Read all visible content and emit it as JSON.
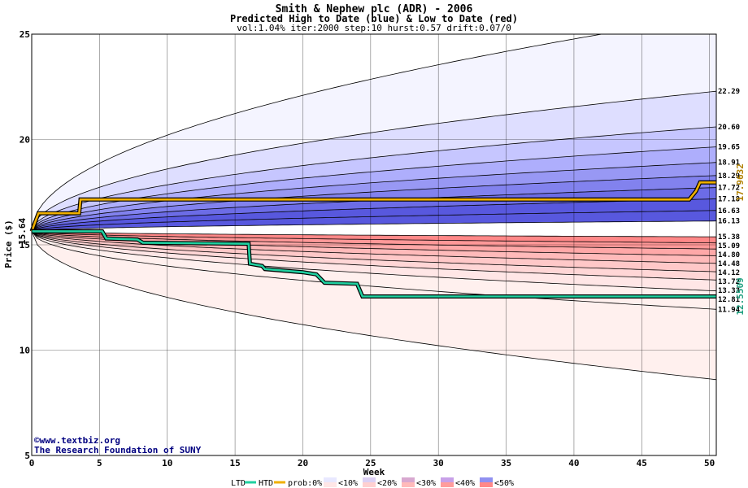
{
  "chart_data": {
    "type": "area",
    "title": "Smith & Nephew plc (ADR) - 2006",
    "subtitle": "Predicted High to Date (blue) &  Low to Date (red)",
    "params": "vol:1.04% iter:2000 step:10 hurst:0.57 drift:0.07/0",
    "xlabel": "Week",
    "ylabel": "Price ($)",
    "xlim": [
      0,
      50.5
    ],
    "ylim": [
      5,
      25
    ],
    "x_ticks": [
      0,
      5,
      10,
      15,
      20,
      25,
      30,
      35,
      40,
      45,
      50
    ],
    "y_ticks": [
      5,
      10,
      15,
      20,
      25
    ],
    "x_tick_labels": [
      "0",
      "5",
      "10",
      "15",
      "20",
      "25",
      "30",
      "35",
      "40",
      "45",
      "50"
    ],
    "y_tick_labels": [
      "5",
      "10",
      "15",
      "20",
      "25"
    ],
    "start_price": 15.64,
    "start_label": "15.64",
    "percentile_end_values": [
      22.29,
      20.6,
      19.65,
      18.91,
      18.29,
      17.72,
      17.18,
      16.63,
      16.13,
      15.38,
      15.09,
      14.8,
      14.48,
      14.12,
      13.72,
      13.33,
      12.81,
      11.94
    ],
    "percentile_end_labels": [
      "22.29",
      "20.60",
      "19.65",
      "18.91",
      "18.29",
      "17.72",
      "17.18",
      "16.63",
      "16.13",
      "15.38",
      "15.09",
      "14.80",
      "14.48",
      "14.12",
      "13.72",
      "13.33",
      "12.81",
      "11.94"
    ],
    "outer_upper_end": 25.9,
    "outer_lower_end": 8.6,
    "series": [
      {
        "name": "HTD",
        "color": "#f0b000",
        "end_label": "17.9632",
        "points": [
          [
            0,
            15.64
          ],
          [
            0.5,
            16.5
          ],
          [
            3.5,
            16.5
          ],
          [
            3.6,
            17.15
          ],
          [
            48.5,
            17.15
          ],
          [
            49,
            17.55
          ],
          [
            49.3,
            17.96
          ],
          [
            50.5,
            17.96
          ]
        ]
      },
      {
        "name": "LTD",
        "color": "#20d0a0",
        "end_label": "12.5509",
        "points": [
          [
            0,
            15.64
          ],
          [
            5.2,
            15.64
          ],
          [
            5.5,
            15.3
          ],
          [
            7.8,
            15.25
          ],
          [
            8.2,
            15.1
          ],
          [
            16,
            15.05
          ],
          [
            16.1,
            14.1
          ],
          [
            17,
            14.0
          ],
          [
            17.2,
            13.85
          ],
          [
            20,
            13.7
          ],
          [
            21,
            13.6
          ],
          [
            21.6,
            13.2
          ],
          [
            24,
            13.15
          ],
          [
            24.4,
            12.55
          ],
          [
            50.5,
            12.55
          ]
        ]
      }
    ],
    "legend": {
      "ltd": "LTD",
      "htd": "HTD",
      "prob": "prob:0%",
      "bins": [
        "<10%",
        "<20%",
        "<30%",
        "<40%",
        "<50%"
      ]
    },
    "credit_line1": "www.textbiz.org",
    "credit_line2": "The Research Foundation of SUNY",
    "colors": {
      "blue_bands": [
        "#f4f4ff",
        "#dedeff",
        "#c6c6ff",
        "#aeaefc",
        "#9898f4",
        "#8282ee",
        "#6c6ce6",
        "#5858de"
      ],
      "red_bands": [
        "#ffe6e6",
        "#ffd6d6",
        "#ffc8c8",
        "#ffbaba",
        "#ffa8a8",
        "#ff9898",
        "#ff8888",
        "#fcefef"
      ],
      "outer_blue": "#f4f4ff",
      "outer_red": "#fff0ee",
      "grid": "#000000",
      "htd": "#f0b000",
      "ltd": "#20d0a0"
    }
  }
}
